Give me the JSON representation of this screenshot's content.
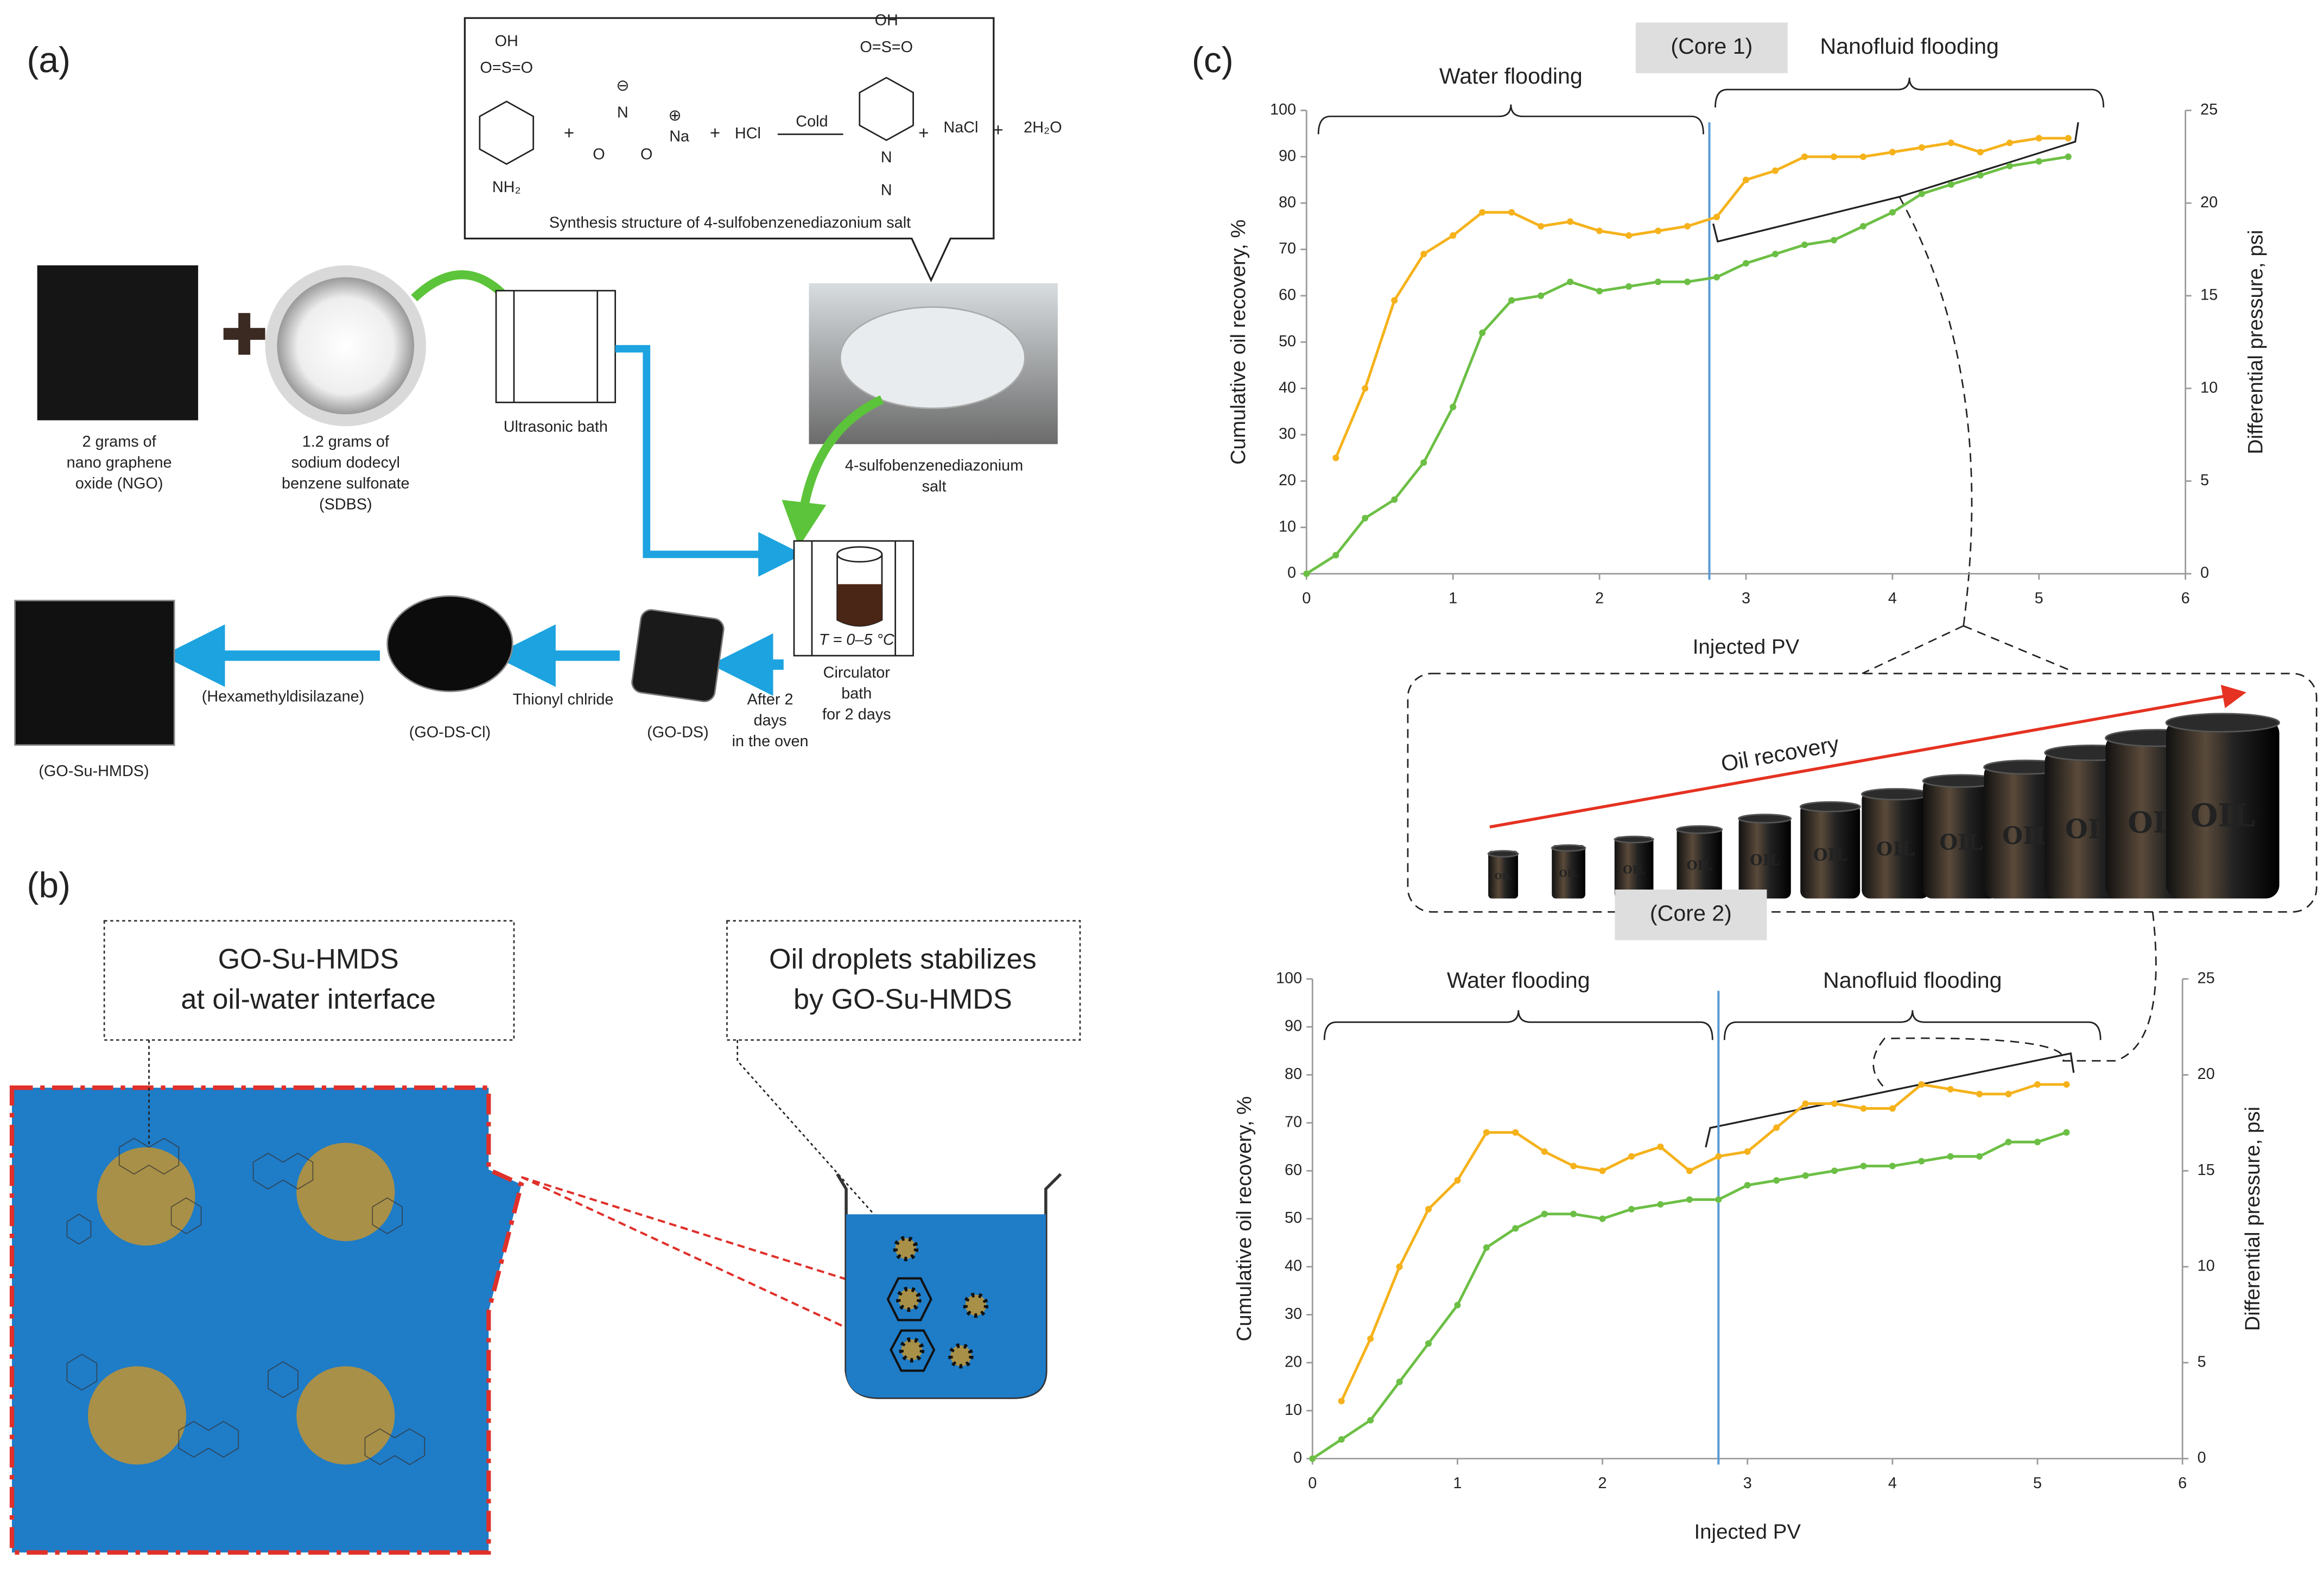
{
  "panel_labels": [
    "(a)",
    "(b)",
    "(c)"
  ],
  "panel_a": {
    "reaction": {
      "oh": "OH",
      "so3": "O=S=O",
      "nh2": "NH₂",
      "minus": "⊖",
      "n": "N",
      "plus_charge": "⊕",
      "na": "Na",
      "o": "O",
      "plus": "+",
      "hcl": "HCl",
      "cold": "Cold",
      "nacl": "NaCl",
      "water": "2H₂O",
      "caption": "Synthesis structure of 4-sulfobenzenediazonium salt"
    },
    "ngo_label": [
      "2 grams of",
      "nano graphene",
      "oxide (NGO)"
    ],
    "sdbs_label": [
      "1.2 grams of",
      "sodium dodecyl",
      "benzene sulfonate",
      "(SDBS)"
    ],
    "ultrasonic_label": "Ultrasonic bath",
    "salt_label": [
      "4-sulfobenzenediazonium",
      "salt"
    ],
    "temperature": "T = 0–5 °C",
    "circulator_label": [
      "Circulator",
      "bath",
      "for 2 days"
    ],
    "oven_label": [
      "After 2",
      "days",
      "in the oven"
    ],
    "go_ds": "(GO-DS)",
    "thionyl": "Thionyl chlride",
    "go_ds_cl": "(GO-DS-Cl)",
    "hmds": "(Hexamethyldisilazane)",
    "go_su_hmds": "(GO-Su-HMDS)"
  },
  "panel_b": {
    "interface_note": [
      "GO-Su-HMDS",
      "at oil-water interface"
    ],
    "droplet_note": [
      "Oil droplets stabilizes",
      "by GO-Su-HMDS"
    ]
  },
  "panel_c": {
    "oil_recovery": "Oil recovery",
    "barrel_label": "OIL"
  },
  "chart_data": [
    {
      "type": "line",
      "core_label": "(Core 1)",
      "water_label": "Water flooding",
      "nanofluid_label": "Nanofluid flooding",
      "xlabel": "Injected PV",
      "ylabel": "Cumulative oil recovery, %",
      "y2label": "Differential pressure, psi",
      "x": [
        0,
        0.2,
        0.4,
        0.6,
        0.8,
        1.0,
        1.2,
        1.4,
        1.6,
        1.8,
        2.0,
        2.2,
        2.4,
        2.6,
        2.8,
        3.0,
        3.2,
        3.4,
        3.6,
        3.8,
        4.0,
        4.2,
        4.4,
        4.6,
        4.8,
        5.0,
        5.2
      ],
      "series": [
        {
          "color": "#f5b21b",
          "values": [
            null,
            25,
            40,
            59,
            69,
            73,
            78,
            78,
            75,
            76,
            74,
            73,
            74,
            75,
            77,
            85,
            87,
            90,
            90,
            90,
            91,
            92,
            93,
            91,
            93,
            94,
            94
          ]
        },
        {
          "color": "#6cbf45",
          "values": [
            0,
            4,
            12,
            16,
            24,
            36,
            52,
            59,
            60,
            63,
            61,
            62,
            63,
            63,
            64,
            67,
            69,
            71,
            72,
            75,
            78,
            82,
            84,
            86,
            88,
            89,
            90
          ]
        }
      ],
      "xlim": [
        0,
        6
      ],
      "xticks": [
        0,
        1,
        2,
        3,
        4,
        5,
        6
      ],
      "ylim": [
        0,
        100
      ],
      "yticks": [
        0,
        10,
        20,
        30,
        40,
        50,
        60,
        70,
        80,
        90,
        100
      ],
      "y2lim": [
        0,
        25
      ],
      "y2ticks": [
        0,
        5,
        10,
        15,
        20,
        25
      ],
      "vertical_line_x": 2.75,
      "vertical_line_color": "#5b9bd5"
    },
    {
      "type": "line",
      "core_label": "(Core 2)",
      "water_label": "Water flooding",
      "nanofluid_label": "Nanofluid flooding",
      "xlabel": "Injected PV",
      "ylabel": "Cumulative oil recovery, %",
      "y2label": "Differential pressure, psi",
      "x": [
        0,
        0.2,
        0.4,
        0.6,
        0.8,
        1.0,
        1.2,
        1.4,
        1.6,
        1.8,
        2.0,
        2.2,
        2.4,
        2.6,
        2.8,
        3.0,
        3.2,
        3.4,
        3.6,
        3.8,
        4.0,
        4.2,
        4.4,
        4.6,
        4.8,
        5.0,
        5.2
      ],
      "series": [
        {
          "color": "#f5b21b",
          "values": [
            null,
            12,
            25,
            40,
            52,
            58,
            68,
            68,
            64,
            61,
            60,
            63,
            65,
            60,
            63,
            64,
            69,
            74,
            74,
            73,
            73,
            78,
            77,
            76,
            76,
            78,
            78
          ]
        },
        {
          "color": "#6cbf45",
          "values": [
            0,
            4,
            8,
            16,
            24,
            32,
            44,
            48,
            51,
            51,
            50,
            52,
            53,
            54,
            54,
            57,
            58,
            59,
            60,
            61,
            61,
            62,
            63,
            63,
            66,
            66,
            68
          ]
        }
      ],
      "xlim": [
        0,
        6
      ],
      "xticks": [
        0,
        1,
        2,
        3,
        4,
        5,
        6
      ],
      "ylim": [
        0,
        100
      ],
      "yticks": [
        0,
        10,
        20,
        30,
        40,
        50,
        60,
        70,
        80,
        90,
        100
      ],
      "y2lim": [
        0,
        25
      ],
      "y2ticks": [
        0,
        5,
        10,
        15,
        20,
        25
      ],
      "vertical_line_x": 2.8,
      "vertical_line_color": "#5b9bd5"
    }
  ]
}
